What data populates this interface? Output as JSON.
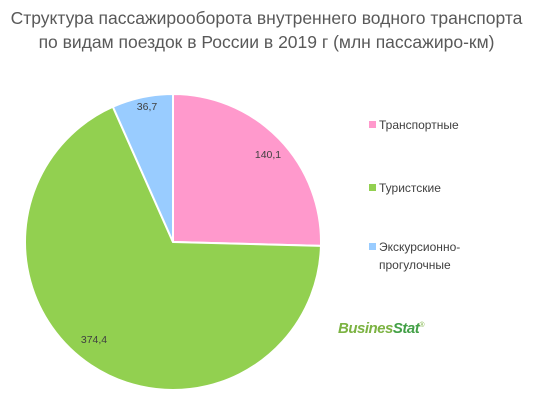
{
  "title_line1": "Структура пассажирооборота внутреннего водного транспорта",
  "title_line2": "по видам поездок в России в 2019 г (млн пассажиро-км)",
  "brand": {
    "part1": "Busines",
    "part2": "Stat",
    "mark": "®"
  },
  "chart_data": {
    "type": "pie",
    "title": "Структура пассажирооборота внутреннего водного транспорта по видам поездок в России в 2019 г (млн пассажиро-км)",
    "legend_position": "right",
    "slices": [
      {
        "label": "Транспортные",
        "value": 140.1,
        "value_label": "140,1",
        "color": "#ff99cc"
      },
      {
        "label": "Туристские",
        "value": 374.4,
        "value_label": "374,4",
        "color": "#92d050"
      },
      {
        "label": "Экскурсионно-прогулочные",
        "value": 36.7,
        "value_label": "36,7",
        "color": "#99ccff"
      }
    ],
    "legend_lines": [
      [
        "Транспортные"
      ],
      [
        "Туристские"
      ],
      [
        "Экскурсионно-",
        "прогулочные"
      ]
    ]
  }
}
